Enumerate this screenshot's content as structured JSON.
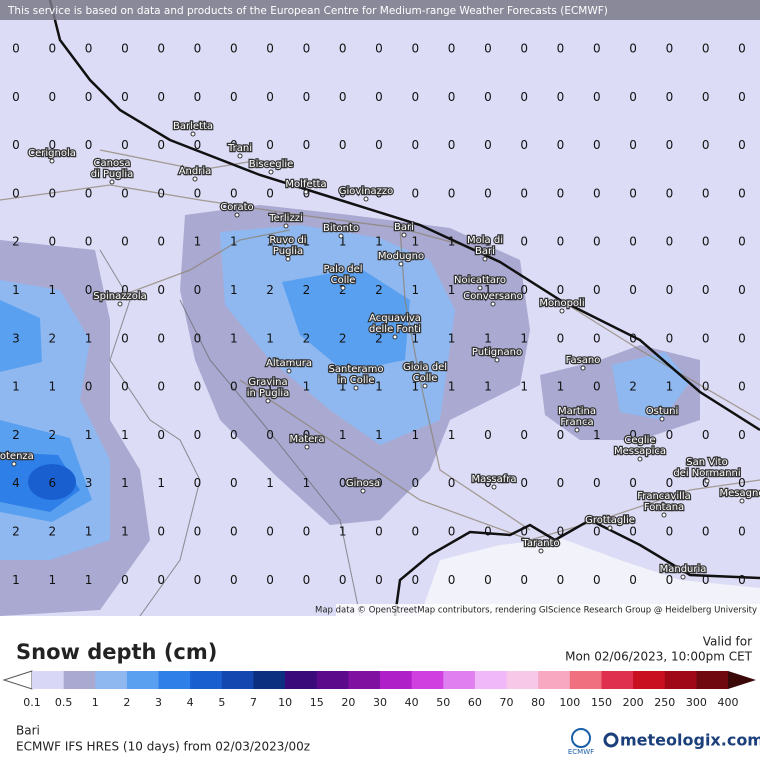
{
  "header": "This service is based on data and products of the European Centre for Medium-range Weather Forecasts (ECMWF)",
  "attribution": "Map data © OpenStreetMap contributors, rendering GIScience Research Group @ Heidelberg University",
  "grid": {
    "rows": [
      [
        0,
        0,
        0,
        0,
        0,
        0,
        0,
        0,
        0,
        0,
        0,
        0,
        0,
        0,
        0,
        0,
        0,
        0,
        0,
        0,
        0
      ],
      [
        0,
        0,
        0,
        0,
        0,
        0,
        0,
        0,
        0,
        0,
        0,
        0,
        0,
        0,
        0,
        0,
        0,
        0,
        0,
        0,
        0
      ],
      [
        0,
        0,
        0,
        0,
        0,
        0,
        0,
        0,
        0,
        0,
        0,
        0,
        0,
        0,
        0,
        0,
        0,
        0,
        0,
        0,
        0
      ],
      [
        0,
        0,
        0,
        0,
        0,
        0,
        0,
        0,
        0,
        0,
        0,
        0,
        0,
        0,
        0,
        0,
        0,
        0,
        0,
        0,
        0
      ],
      [
        2,
        0,
        0,
        0,
        0,
        1,
        1,
        1,
        1,
        1,
        1,
        1,
        1,
        1,
        0,
        0,
        0,
        0,
        0,
        0,
        0
      ],
      [
        1,
        1,
        0,
        0,
        0,
        0,
        1,
        2,
        2,
        2,
        2,
        1,
        1,
        1,
        0,
        0,
        0,
        0,
        0,
        0,
        0
      ],
      [
        3,
        2,
        1,
        0,
        0,
        0,
        1,
        1,
        2,
        2,
        2,
        1,
        1,
        1,
        1,
        0,
        0,
        0,
        0,
        0,
        0
      ],
      [
        1,
        1,
        0,
        0,
        0,
        0,
        0,
        1,
        1,
        1,
        1,
        1,
        1,
        1,
        1,
        1,
        0,
        2,
        1,
        0,
        0
      ],
      [
        2,
        2,
        1,
        1,
        0,
        0,
        0,
        0,
        0,
        1,
        1,
        1,
        1,
        0,
        0,
        0,
        1,
        0,
        0,
        0,
        0
      ],
      [
        4,
        6,
        3,
        1,
        1,
        0,
        0,
        1,
        1,
        0,
        0,
        0,
        0,
        0,
        0,
        0,
        0,
        0,
        0,
        0,
        0
      ],
      [
        2,
        2,
        1,
        1,
        0,
        0,
        0,
        0,
        0,
        1,
        0,
        0,
        0,
        0,
        0,
        0,
        0,
        0,
        0,
        0,
        0
      ],
      [
        1,
        1,
        1,
        0,
        0,
        0,
        0,
        0,
        0,
        0,
        0,
        0,
        0,
        0,
        0,
        0,
        0,
        0,
        0,
        0,
        0
      ]
    ]
  },
  "cities": [
    [
      "Barletta"
    ],
    [
      "Cerignola"
    ],
    [
      "Canosa",
      "di Puglia"
    ],
    [
      "Trani"
    ],
    [
      "Bisceglie"
    ],
    [
      "Andria"
    ],
    [
      "Molfetta"
    ],
    [
      "Giovinazzo"
    ],
    [
      "Corato"
    ],
    [
      "Terlizzi"
    ],
    [
      "Bari"
    ],
    [
      "Bitonto"
    ],
    [
      "Ruvo di",
      "Puglia"
    ],
    [
      "Mola di",
      "Bari"
    ],
    [
      "Modugno"
    ],
    [
      "Palo del",
      "Colle"
    ],
    [
      "Noicattaro"
    ],
    [
      "Spinazzola"
    ],
    [
      "Conversano"
    ],
    [
      "Monopoli"
    ],
    [
      "Acquaviva",
      "delle Fonti"
    ],
    [
      "Putignano"
    ],
    [
      "Fasano"
    ],
    [
      "Altamura"
    ],
    [
      "Santeramo",
      "in Colle"
    ],
    [
      "Gioia del",
      "Colle"
    ],
    [
      "Gravina",
      "in Puglia"
    ],
    [
      "Ostuni"
    ],
    [
      "Martina",
      "Franca"
    ],
    [
      "Ceglie",
      "Messapica"
    ],
    [
      "Matera"
    ],
    [
      "San Vito",
      "dei Normanni"
    ],
    [
      "Ginosa"
    ],
    [
      "Massafra"
    ],
    [
      "Francavilla",
      "Fontana"
    ],
    [
      "Mesagne"
    ],
    [
      "Grottaglie"
    ],
    [
      "Taranto"
    ],
    [
      "Manduria"
    ],
    [
      "Potenza"
    ]
  ],
  "legend": {
    "title": "Snow depth (cm)",
    "labels": [
      "0.1",
      "0.5",
      "1",
      "2",
      "3",
      "4",
      "5",
      "7",
      "10",
      "15",
      "20",
      "30",
      "40",
      "50",
      "60",
      "70",
      "80",
      "100",
      "150",
      "200",
      "250",
      "300",
      "400"
    ],
    "colors": [
      "#d8d8f6",
      "#a9a9d2",
      "#8fb8f0",
      "#5aa0f0",
      "#2f7fe8",
      "#1a5fd0",
      "#1448b0",
      "#0c2f80",
      "#3a0a7a",
      "#5a0a8a",
      "#8010a0",
      "#b020c8",
      "#d040e0",
      "#e080f0",
      "#f0b8f8",
      "#f8c8e8",
      "#f8a8c0",
      "#f07080",
      "#e03050",
      "#c81020",
      "#a00818",
      "#700810"
    ]
  },
  "valid_label": "Valid for",
  "valid_time": "Mon 02/06/2023, 10:00pm CET",
  "location": "Bari",
  "model": "ECMWF IFS HRES (10 days) from 02/03/2023/00z",
  "logo_ecmwf": "ECMWF",
  "logo_site": "meteologix.com"
}
